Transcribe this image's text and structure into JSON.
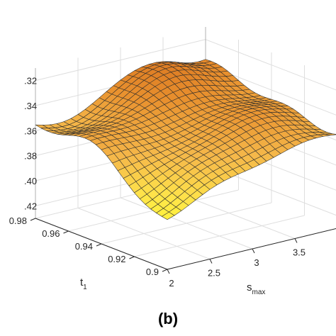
{
  "chart_data": {
    "type": "surface",
    "panel_label": "(b)",
    "xlabel": {
      "main": "s",
      "sub": "max"
    },
    "ylabel": {
      "main": "t",
      "sub": "1"
    },
    "zlabel": "",
    "x_ticks": [
      "2",
      "2.5",
      "3",
      "3.5"
    ],
    "y_ticks": [
      "0.9",
      "0.92",
      "0.94",
      "0.96",
      "0.98"
    ],
    "z_ticks": [
      ".32",
      ".34",
      ".36",
      ".38",
      ".40",
      ".42"
    ],
    "xlim": [
      2,
      4
    ],
    "ylim": [
      0.9,
      0.98
    ],
    "zlim": [
      -0.43,
      -0.31
    ],
    "grid": true,
    "colormap": [
      "#ffff33",
      "#ffe34a",
      "#f5b84a",
      "#e8902e",
      "#d9741f"
    ],
    "surface_grid": {
      "x_count": 24,
      "y_count": 24
    },
    "surface_shape": {
      "base": -0.358,
      "description_points": [
        {
          "s_max": 2.0,
          "t1": 0.98,
          "value": -0.357
        },
        {
          "s_max": 2.0,
          "t1": 0.9,
          "value": -0.398
        },
        {
          "s_max": 3.0,
          "t1": 0.94,
          "value": -0.345
        },
        {
          "s_max": 3.5,
          "t1": 0.98,
          "value": -0.322
        },
        {
          "s_max": 4.0,
          "t1": 0.98,
          "value": -0.338
        },
        {
          "s_max": 4.0,
          "t1": 0.9,
          "value": -0.355
        }
      ]
    }
  }
}
